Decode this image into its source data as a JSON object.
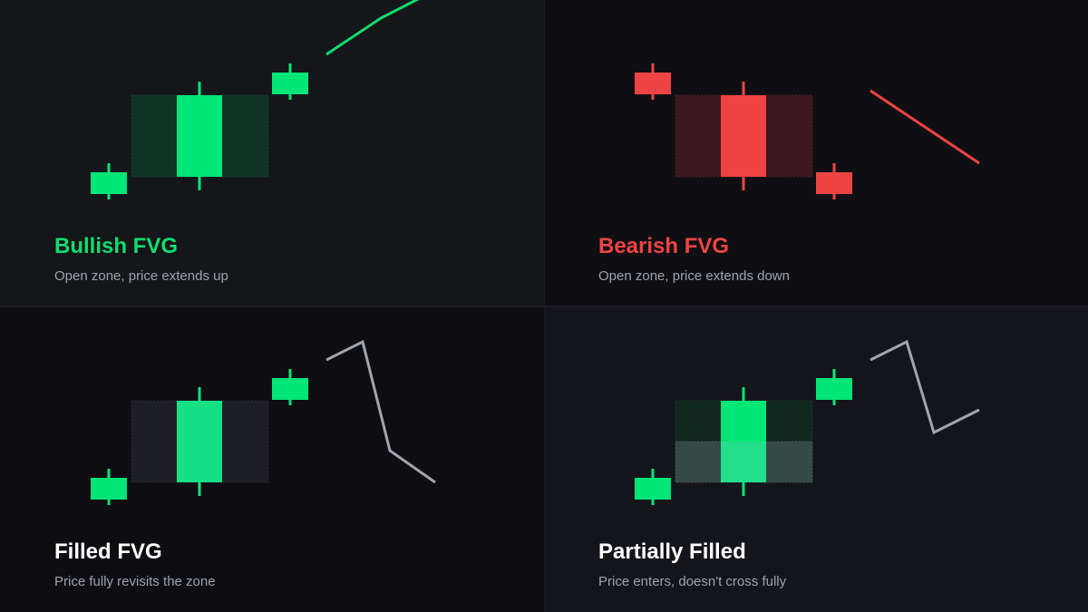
{
  "panels": [
    {
      "title": "Bullish FVG",
      "description": "Open zone, price extends up",
      "title_color": "#10dc6c",
      "candle_color": "#00e676",
      "zone_color": "#0f3324",
      "trend_color": "#10dc6c"
    },
    {
      "title": "Bearish FVG",
      "description": "Open zone, price extends down",
      "title_color": "#ef4444",
      "candle_color": "#ef4444",
      "zone_color": "#3a181c",
      "trend_color": "#ef4444"
    },
    {
      "title": "Filled FVG",
      "description": "Price fully revisits the zone",
      "title_color": "#ffffff",
      "candle_color": "#00e676",
      "middle_candle_color": "#16e085",
      "zone_color": "#1e1f26",
      "trend_color": "#a1a5ad"
    },
    {
      "title": "Partially Filled",
      "description": "Price enters, doesn't cross fully",
      "title_color": "#ffffff",
      "candle_color": "#00e676",
      "zone_color": "#112820",
      "filled_zone_color": "#344a47",
      "filled_candle_color": "#23df8c",
      "trend_color": "#a1a5ad"
    }
  ]
}
